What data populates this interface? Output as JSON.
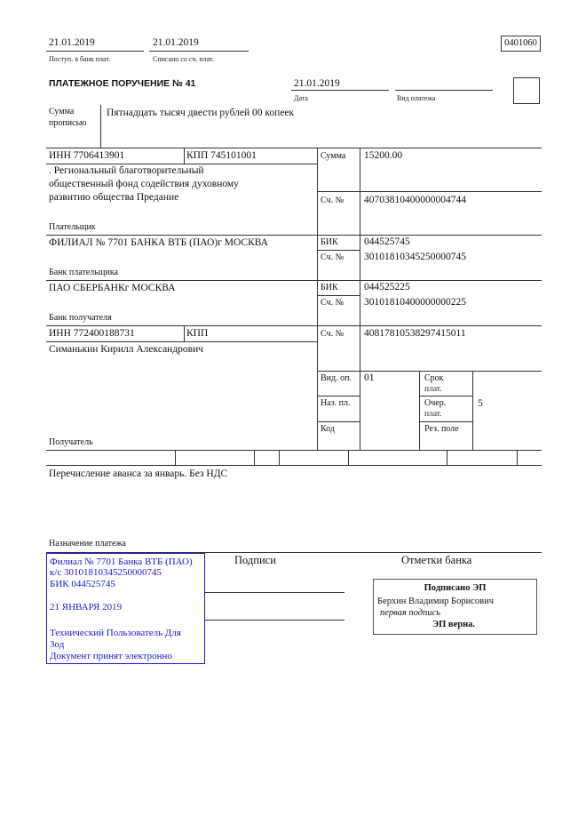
{
  "header": {
    "received_date": "21.01.2019",
    "received_label": "Поступ. в банк плат.",
    "debited_date": "21.01.2019",
    "debited_label": "Списано со сч. плат.",
    "form_code": "0401060",
    "title": "ПЛАТЕЖНОЕ ПОРУЧЕНИЕ № 41",
    "date": "21.01.2019",
    "date_label": "Дата",
    "payment_type_label": "Вид платежа",
    "payment_type": ""
  },
  "amount_words": {
    "label_1": "Сумма",
    "label_2": "прописью",
    "value": "Пятнадцать тысяч двести рублей 00 копеек"
  },
  "payer": {
    "inn": "ИНН 7706413901",
    "kpp": "КПП 745101001",
    "name_lines": [
      ". Региональный благотворительный",
      "общественный фонд содействия духовному",
      "развитию общества Предание"
    ],
    "label": "Плательщик",
    "sum_label": "Сумма",
    "sum": "15200.00",
    "account_label": "Сч. №",
    "account": "40703810400000004744"
  },
  "payer_bank": {
    "name": "ФИЛИАЛ № 7701 БАНКА ВТБ (ПАО)г МОСКВА",
    "label": "Банк плательщика",
    "bik_label": "БИК",
    "bik": "044525745",
    "account_label": "Сч. №",
    "account": "30101810345250000745"
  },
  "payee_bank": {
    "name": "ПАО СБЕРБАНКг МОСКВА",
    "label": "Банк получателя",
    "bik_label": "БИК",
    "bik": "044525225",
    "account_label": "Сч. №",
    "account": "30101810400000000225"
  },
  "payee": {
    "inn": "ИНН 772400188731",
    "kpp": "КПП",
    "name": "Симанькин Кирилл Александрович",
    "label": "Получатель",
    "account_label": "Сч. №",
    "account": "40817810538297415011",
    "op_type_label": "Вид. оп.",
    "op_type": "01",
    "purpose_code_label": "Наз. пл.",
    "code_label": "Код",
    "term_label_1": "Срок",
    "term_label_2": "плат.",
    "order_label_1": "Очер.",
    "order_label_2": "плат.",
    "order": "5",
    "reserve_label": "Рез. поле"
  },
  "purpose": {
    "text": "Перечисление аванса за январь. Без НДС",
    "label": "Назначение платежа"
  },
  "stamp": {
    "lines": [
      "Филиал № 7701 Банка ВТБ (ПАО)",
      "к/с 30101810345250000745",
      "БИК 044525745",
      "21 ЯНВАРЯ 2019",
      "Технический Пользователь Для",
      "Зод",
      "Документ принят электронно"
    ],
    "color": "#1a1ad0"
  },
  "signatures": {
    "label": "Подписи"
  },
  "bank_marks": {
    "label": "Отметки банка",
    "signed": "Подписано ЭП",
    "signer": "Берхин Владимир Борисович",
    "role": "первая подпись",
    "valid": "ЭП верна."
  }
}
